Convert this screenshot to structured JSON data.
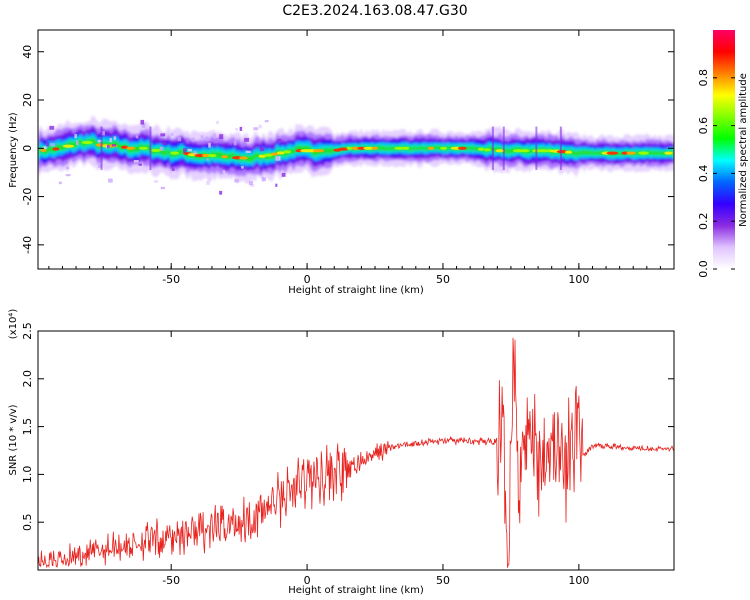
{
  "figure": {
    "title": "C2E3.2024.163.08.47.G30"
  },
  "chart_data": [
    {
      "type": "heatmap",
      "xlabel": "Height of straight line (km)",
      "ylabel": "Frequency (Hz)",
      "xlim": [
        -99,
        135
      ],
      "ylim": [
        -50,
        49
      ],
      "xticks": [
        -50,
        0,
        50,
        100
      ],
      "yticks": [
        -40,
        -20,
        0,
        20,
        40
      ],
      "xtick_labels": [
        "-50",
        "0",
        "50",
        "100"
      ],
      "ytick_labels": [
        "-40",
        "-20",
        "0",
        "20",
        "40"
      ],
      "ridge_center": [
        {
          "x": -98,
          "y": -1
        },
        {
          "x": -90,
          "y": 0
        },
        {
          "x": -85,
          "y": 2
        },
        {
          "x": -80,
          "y": 2.5
        },
        {
          "x": -75,
          "y": 1
        },
        {
          "x": -70,
          "y": 1
        },
        {
          "x": -65,
          "y": 0
        },
        {
          "x": -60,
          "y": 0
        },
        {
          "x": -55,
          "y": -1
        },
        {
          "x": -50,
          "y": -2
        },
        {
          "x": -45,
          "y": -2
        },
        {
          "x": -40,
          "y": -3
        },
        {
          "x": -35,
          "y": -3
        },
        {
          "x": -30,
          "y": -3.5
        },
        {
          "x": -25,
          "y": -4
        },
        {
          "x": -20,
          "y": -4
        },
        {
          "x": -15,
          "y": -3
        },
        {
          "x": -10,
          "y": -2
        },
        {
          "x": -5,
          "y": -1
        },
        {
          "x": 0,
          "y": -1
        },
        {
          "x": 5,
          "y": -1
        },
        {
          "x": 10,
          "y": -1
        },
        {
          "x": 15,
          "y": 0
        },
        {
          "x": 20,
          "y": 0
        },
        {
          "x": 30,
          "y": 0
        },
        {
          "x": 40,
          "y": 0
        },
        {
          "x": 50,
          "y": 0
        },
        {
          "x": 60,
          "y": 0
        },
        {
          "x": 70,
          "y": -1
        },
        {
          "x": 80,
          "y": -1
        },
        {
          "x": 90,
          "y": -1
        },
        {
          "x": 100,
          "y": -2
        },
        {
          "x": 110,
          "y": -2
        },
        {
          "x": 120,
          "y": -2
        },
        {
          "x": 135,
          "y": -2
        }
      ],
      "colorbar": {
        "label": "Normalized spectral amplitude",
        "range": [
          0,
          1
        ],
        "ticks": [
          0.0,
          0.2,
          0.4,
          0.6,
          0.8
        ],
        "tick_labels": [
          "0.0",
          "0.2",
          "0.4",
          "0.6",
          "0.8"
        ],
        "colormap": [
          "#ffffff",
          "#e0c4ff",
          "#8a2be2",
          "#3300ff",
          "#0066ff",
          "#00ffff",
          "#00ff00",
          "#80ff00",
          "#ffff00",
          "#ff8000",
          "#ff0000",
          "#ff0066"
        ]
      },
      "grid": false
    },
    {
      "type": "line",
      "xlabel": "Height of straight line (km)",
      "ylabel": "SNR (10 * v/v)",
      "y_multiplier": "(x10⁴)",
      "xlim": [
        -99,
        135
      ],
      "ylim": [
        0,
        2.5
      ],
      "xticks": [
        -50,
        0,
        50,
        100
      ],
      "yticks": [
        0.5,
        1.0,
        1.5,
        2.0,
        2.5
      ],
      "xtick_labels": [
        "-50",
        "0",
        "50",
        "100"
      ],
      "ytick_labels": [
        "0.5",
        "1.0",
        "1.5",
        "2.0",
        "2.5"
      ],
      "line_color": "#e8221e",
      "grid": false,
      "series": [
        {
          "x": [
            -99,
            -90,
            -80,
            -70,
            -60,
            -50,
            -40,
            -30,
            -20,
            -10,
            0,
            5,
            10,
            15,
            20,
            25,
            30,
            40,
            50,
            60,
            65,
            70,
            72,
            74,
            76,
            78,
            80,
            85,
            90,
            95,
            100,
            102,
            105,
            110,
            120,
            130,
            135
          ],
          "values": [
            0.08,
            0.12,
            0.18,
            0.25,
            0.3,
            0.35,
            0.4,
            0.45,
            0.55,
            0.75,
            0.95,
            1.0,
            1.05,
            1.0,
            1.15,
            1.2,
            1.28,
            1.33,
            1.35,
            1.35,
            1.34,
            1.35,
            1.5,
            0.2,
            2.4,
            1.0,
            1.6,
            1.2,
            1.4,
            1.0,
            1.7,
            1.2,
            1.3,
            1.3,
            1.28,
            1.27,
            1.27
          ]
        }
      ]
    }
  ]
}
